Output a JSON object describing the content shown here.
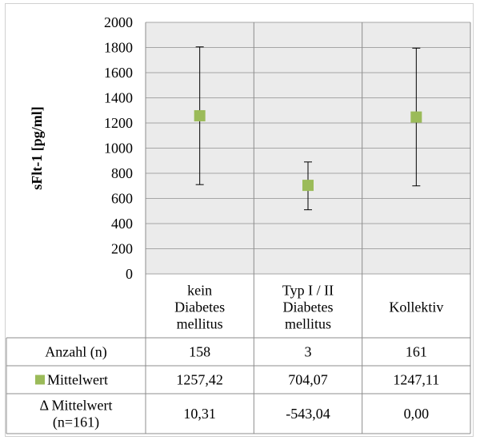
{
  "chart_data": {
    "type": "scatter",
    "ylabel": "sFlt-1 [pg/ml]",
    "ylim": [
      0,
      2000
    ],
    "yticks": [
      0,
      200,
      400,
      600,
      800,
      1000,
      1200,
      1400,
      1600,
      1800,
      2000
    ],
    "grid": true,
    "categories": [
      [
        "kein",
        "Diabetes",
        "mellitus"
      ],
      [
        "Typ I / II",
        "Diabetes",
        "mellitus"
      ],
      [
        "Kollektiv"
      ]
    ],
    "series": [
      {
        "name": "Mittelwert",
        "color": "#9bbb59",
        "values": [
          1257.42,
          704.07,
          1247.11
        ],
        "error_high": [
          1805,
          890,
          1795
        ],
        "error_low": [
          710,
          510,
          700
        ]
      }
    ],
    "table": {
      "rows": [
        {
          "label": [
            "Anzahl (n)"
          ],
          "marker": false,
          "values": [
            "158",
            "3",
            "161"
          ]
        },
        {
          "label": [
            "Mittelwert"
          ],
          "marker": true,
          "values": [
            "1257,42",
            "704,07",
            "1247,11"
          ]
        },
        {
          "label": [
            "Δ Mittelwert",
            "(n=161)"
          ],
          "marker": false,
          "values": [
            "10,31",
            "-543,04",
            "0,00"
          ]
        }
      ]
    }
  }
}
